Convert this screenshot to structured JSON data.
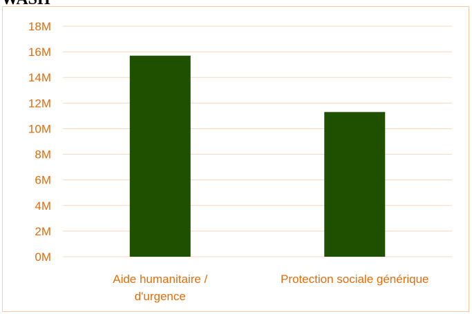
{
  "page": {
    "heading": "WASH"
  },
  "chart_data": {
    "type": "bar",
    "title": "",
    "xlabel": "",
    "ylabel": "",
    "categories": [
      [
        "Aide humanitaire /",
        "d'urgence"
      ],
      [
        "Protection sociale générique"
      ]
    ],
    "values": [
      15700000,
      11300000
    ],
    "ylim": [
      0,
      18000000
    ],
    "y_ticks": [
      {
        "value": 0,
        "label": "0M"
      },
      {
        "value": 2000000,
        "label": "2M"
      },
      {
        "value": 4000000,
        "label": "4M"
      },
      {
        "value": 6000000,
        "label": "6M"
      },
      {
        "value": 8000000,
        "label": "8M"
      },
      {
        "value": 10000000,
        "label": "10M"
      },
      {
        "value": 12000000,
        "label": "12M"
      },
      {
        "value": 14000000,
        "label": "14M"
      },
      {
        "value": 16000000,
        "label": "16M"
      },
      {
        "value": 18000000,
        "label": "18M"
      }
    ],
    "grid": true,
    "legend": "none",
    "colors": {
      "bar": "#1e5000",
      "grid": "#f8d7bd",
      "text": "#e46c0a",
      "frame": "#f5c9a6"
    }
  }
}
